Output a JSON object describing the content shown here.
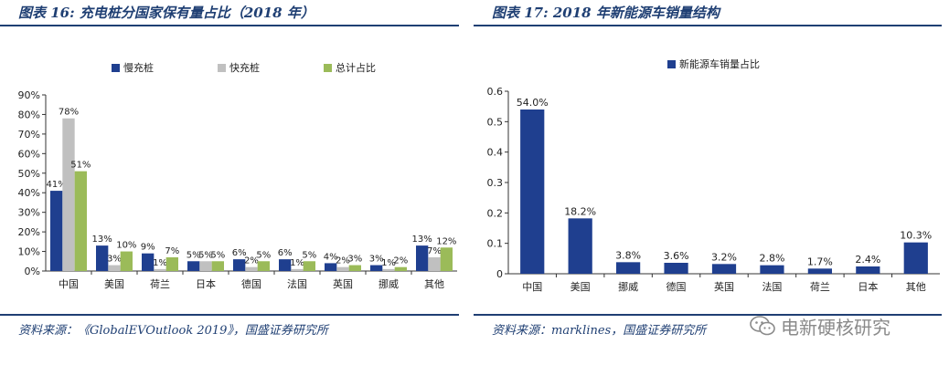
{
  "chart_data": [
    {
      "type": "bar",
      "title": "图表 16:  充电桩分国家保有量占比（2018 年）",
      "source": "资料来源：《GlobalEVOutlook 2019》，国盛证券研究所",
      "categories": [
        "中国",
        "美国",
        "荷兰",
        "日本",
        "德国",
        "法国",
        "英国",
        "挪威",
        "其他"
      ],
      "ylim": [
        0,
        90
      ],
      "yticks": [
        "0%",
        "10%",
        "20%",
        "30%",
        "40%",
        "50%",
        "60%",
        "70%",
        "80%",
        "90%"
      ],
      "grid": false,
      "legend_position": "top",
      "series": [
        {
          "name": "慢充桩",
          "color": "#1f3f8f",
          "values": [
            41,
            13,
            9,
            5,
            6,
            6,
            4,
            3,
            13
          ],
          "labels": [
            "41%",
            "13%",
            "9%",
            "5%",
            "6%",
            "6%",
            "4%",
            "3%",
            "13%"
          ]
        },
        {
          "name": "快充桩",
          "color": "#c0c0c0",
          "values": [
            78,
            3,
            1,
            5,
            2,
            1,
            2,
            1,
            7
          ],
          "labels": [
            "78%",
            "3%",
            "1%",
            "5%",
            "2%",
            "1%",
            "2%",
            "1%",
            "7%"
          ]
        },
        {
          "name": "总计占比",
          "color": "#9bbb59",
          "values": [
            51,
            10,
            7,
            5,
            5,
            5,
            3,
            2,
            12
          ],
          "labels": [
            "51%",
            "10%",
            "7%",
            "5%",
            "5%",
            "5%",
            "3%",
            "2%",
            "12%"
          ]
        }
      ]
    },
    {
      "type": "bar",
      "title": "图表 17:  2018 年新能源车销量结构",
      "source": "资料来源：marklines，国盛证券研究所",
      "categories": [
        "中国",
        "美国",
        "挪威",
        "德国",
        "英国",
        "法国",
        "荷兰",
        "日本",
        "其他"
      ],
      "ylim": [
        0,
        0.6
      ],
      "yticks": [
        "0",
        "0.1",
        "0.2",
        "0.3",
        "0.4",
        "0.5",
        "0.6"
      ],
      "grid": false,
      "legend_position": "top",
      "series": [
        {
          "name": "新能源车销量占比",
          "color": "#1f3f8f",
          "values": [
            0.54,
            0.182,
            0.038,
            0.036,
            0.032,
            0.028,
            0.017,
            0.024,
            0.103
          ],
          "labels": [
            "54.0%",
            "18.2%",
            "3.8%",
            "3.6%",
            "3.2%",
            "2.8%",
            "1.7%",
            "2.4%",
            "10.3%"
          ]
        }
      ]
    }
  ],
  "watermark": {
    "text": "电新硬核研究",
    "icon": "wechat-icon"
  },
  "colors": {
    "rule": "#1f3f73",
    "axis": "#333333"
  }
}
